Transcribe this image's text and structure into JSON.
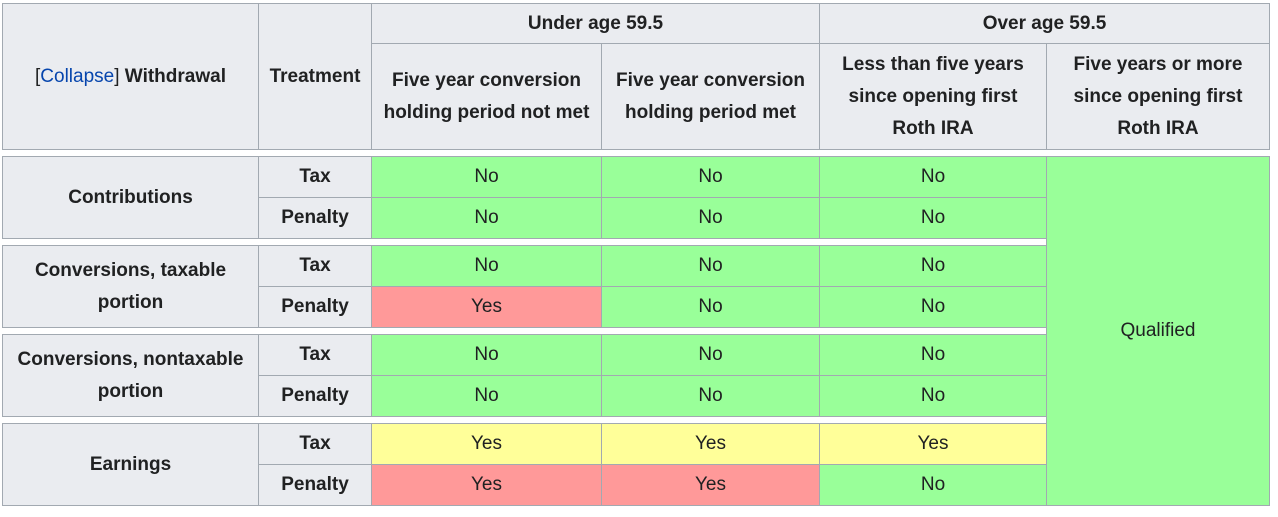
{
  "header": {
    "collapse_label": "Collapse",
    "withdrawal": "Withdrawal",
    "treatment": "Treatment",
    "under_age": "Under age 59.5",
    "over_age": "Over age 59.5",
    "col1": "Five year conversion holding period not met",
    "col2": "Five year conversion holding period met",
    "col3": "Less than five years since opening first Roth IRA",
    "col4": "Five years or more since opening first Roth IRA"
  },
  "qualified": "Qualified",
  "groups": [
    {
      "label": "Contributions",
      "rows": [
        {
          "treatment": "Tax",
          "values": [
            "No",
            "No",
            "No"
          ]
        },
        {
          "treatment": "Penalty",
          "values": [
            "No",
            "No",
            "No"
          ]
        }
      ]
    },
    {
      "label": "Conversions, taxable portion",
      "rows": [
        {
          "treatment": "Tax",
          "values": [
            "No",
            "No",
            "No"
          ]
        },
        {
          "treatment": "Penalty",
          "values": [
            "Yes",
            "No",
            "No"
          ]
        }
      ]
    },
    {
      "label": "Conversions, nontaxable portion",
      "rows": [
        {
          "treatment": "Tax",
          "values": [
            "No",
            "No",
            "No"
          ]
        },
        {
          "treatment": "Penalty",
          "values": [
            "No",
            "No",
            "No"
          ]
        }
      ]
    },
    {
      "label": "Earnings",
      "rows": [
        {
          "treatment": "Tax",
          "values": [
            "Yes",
            "Yes",
            "Yes"
          ]
        },
        {
          "treatment": "Penalty",
          "values": [
            "Yes",
            "Yes",
            "No"
          ]
        }
      ]
    }
  ],
  "colors": {
    "no": "#99ff99",
    "yes_penalty": "#ff9999",
    "yes_tax": "#ffff99",
    "header_bg": "#eaecf0",
    "link": "#0645ad"
  }
}
